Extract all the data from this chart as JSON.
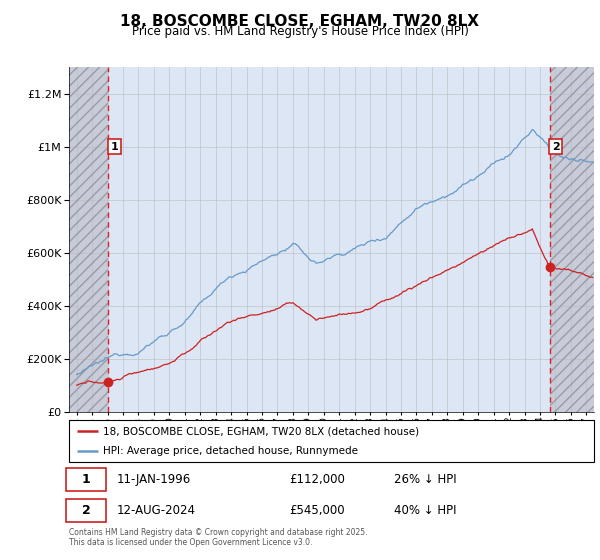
{
  "title": "18, BOSCOMBE CLOSE, EGHAM, TW20 8LX",
  "subtitle": "Price paid vs. HM Land Registry's House Price Index (HPI)",
  "xlim": [
    1993.5,
    2027.5
  ],
  "ylim": [
    0,
    1300000
  ],
  "yticks": [
    0,
    200000,
    400000,
    600000,
    800000,
    1000000,
    1200000
  ],
  "hpi_color": "#6699cc",
  "price_color": "#cc2222",
  "sale1_x": 1996.03,
  "sale1_y": 112000,
  "sale1_label": "1",
  "sale2_x": 2024.62,
  "sale2_y": 545000,
  "sale2_label": "2",
  "grid_color": "#cccccc",
  "bg_plot": "#dce6f5",
  "legend_line1": "18, BOSCOMBE CLOSE, EGHAM, TW20 8LX (detached house)",
  "legend_line2": "HPI: Average price, detached house, Runnymede",
  "info1_num": "1",
  "info1_date": "11-JAN-1996",
  "info1_price": "£112,000",
  "info1_hpi": "26% ↓ HPI",
  "info2_num": "2",
  "info2_date": "12-AUG-2024",
  "info2_price": "£545,000",
  "info2_hpi": "40% ↓ HPI",
  "footnote": "Contains HM Land Registry data © Crown copyright and database right 2025.\nThis data is licensed under the Open Government Licence v3.0."
}
